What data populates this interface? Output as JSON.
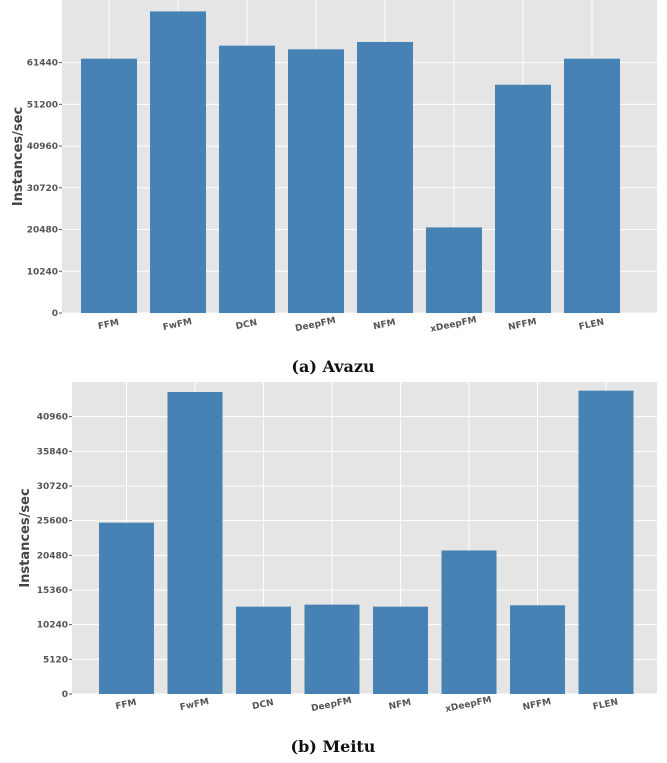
{
  "chart_data": [
    {
      "type": "bar",
      "caption": "(a) Avazu",
      "ylabel": "Instances/sec",
      "categories": [
        "FFM",
        "FwFM",
        "DCN",
        "DeepFM",
        "NFM",
        "xDeepFM",
        "NFFM",
        "FLEN"
      ],
      "values": [
        62400,
        74000,
        65600,
        64700,
        66500,
        21000,
        56000,
        62400
      ],
      "yticks": [
        0,
        10240,
        20480,
        30720,
        40960,
        51200,
        61440
      ],
      "ylim": [
        0,
        76800
      ],
      "grid": true,
      "bar_color": "#4682b4",
      "background": "#e5e5e5"
    },
    {
      "type": "bar",
      "caption": "(b) Meitu",
      "ylabel": "Instances/sec",
      "categories": [
        "FFM",
        "FwFM",
        "DCN",
        "DeepFM",
        "NFM",
        "xDeepFM",
        "NFFM",
        "FLEN"
      ],
      "values": [
        25300,
        44600,
        12900,
        13200,
        12900,
        21200,
        13100,
        44800
      ],
      "yticks": [
        0,
        5120,
        10240,
        15360,
        20480,
        25600,
        30720,
        35840,
        40960
      ],
      "ylim": [
        0,
        46080
      ],
      "grid": true,
      "bar_color": "#4682b4",
      "background": "#e5e5e5"
    }
  ]
}
